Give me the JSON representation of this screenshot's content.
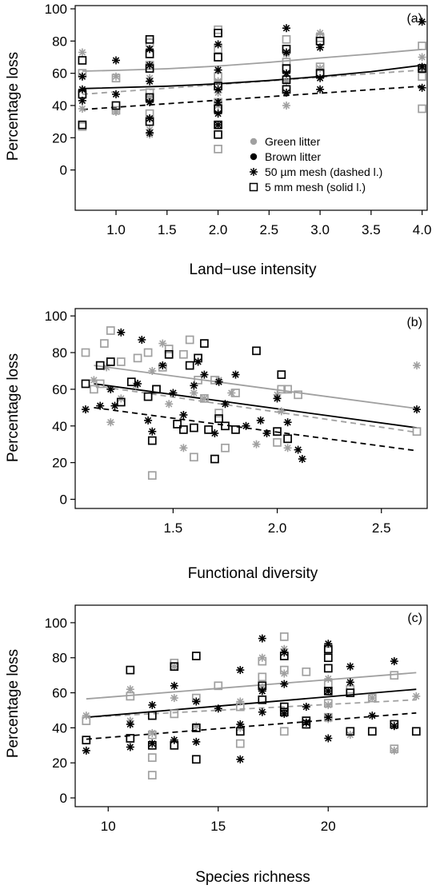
{
  "colors": {
    "green": "#a0a0a0",
    "brown": "#000000"
  },
  "chart_data": [
    {
      "type": "scatter",
      "panel_label": "(a)",
      "xlabel": "Land−use intensity",
      "ylabel": "Percentage loss",
      "xlim": [
        0.6,
        4.05
      ],
      "ylim": [
        -25,
        102
      ],
      "xticks": [
        1.0,
        1.5,
        2.0,
        2.5,
        3.0,
        3.5,
        4.0
      ],
      "xtick_labels": [
        "1.0",
        "1.5",
        "2.0",
        "2.5",
        "3.0",
        "3.5",
        "4.0"
      ],
      "yticks": [
        0,
        20,
        40,
        60,
        80,
        100
      ],
      "ytick_labels": [
        "0",
        "20",
        "40",
        "60",
        "80",
        "100"
      ],
      "legend": {
        "position": "center-right",
        "entries": [
          {
            "label": "Green litter",
            "marker": "dot",
            "color": "green"
          },
          {
            "label": "Brown litter",
            "marker": "dot",
            "color": "brown"
          },
          {
            "label": "50 µm mesh (dashed l.)",
            "marker": "star",
            "color": "brown"
          },
          {
            "label": "5 mm mesh (solid l.)",
            "marker": "square",
            "color": "brown"
          }
        ]
      },
      "points": [
        {
          "series": "green-50um",
          "marker": "star",
          "color": "green",
          "x": [
            0.67,
            0.67,
            0.67,
            1.0,
            1.0,
            1.33,
            1.33,
            1.33,
            1.33,
            1.33,
            2.0,
            2.0,
            2.0,
            2.0,
            2.0,
            2.67,
            2.67,
            2.67,
            3.0,
            3.0,
            4.0,
            4.0
          ],
          "y": [
            73,
            58,
            38,
            58,
            36,
            57,
            45,
            32,
            25,
            22,
            62,
            55,
            48,
            40,
            28,
            72,
            55,
            40,
            85,
            63,
            70,
            63
          ]
        },
        {
          "series": "green-5mm",
          "marker": "square",
          "color": "green",
          "x": [
            0.67,
            0.67,
            1.0,
            1.0,
            1.33,
            1.33,
            1.33,
            1.33,
            2.0,
            2.0,
            2.0,
            2.0,
            2.0,
            2.67,
            2.67,
            2.67,
            3.0,
            3.0,
            4.0,
            4.0,
            4.0
          ],
          "y": [
            60,
            27,
            57,
            37,
            79,
            65,
            48,
            35,
            87,
            75,
            58,
            42,
            13,
            81,
            67,
            50,
            82,
            64,
            77,
            58,
            38
          ]
        },
        {
          "series": "brown-50um",
          "marker": "star",
          "color": "brown",
          "x": [
            0.67,
            0.67,
            0.67,
            1.0,
            1.0,
            1.33,
            1.33,
            1.33,
            1.33,
            1.33,
            1.33,
            2.0,
            2.0,
            2.0,
            2.0,
            2.0,
            2.0,
            2.67,
            2.67,
            2.67,
            2.67,
            3.0,
            3.0,
            3.0,
            4.0,
            4.0,
            4.0
          ],
          "y": [
            58,
            50,
            43,
            68,
            47,
            75,
            65,
            55,
            42,
            32,
            23,
            78,
            62,
            50,
            42,
            35,
            28,
            88,
            73,
            60,
            48,
            76,
            57,
            50,
            92,
            64,
            51
          ]
        },
        {
          "series": "brown-5mm",
          "marker": "square",
          "color": "brown",
          "x": [
            0.67,
            0.67,
            0.67,
            1.0,
            1.33,
            1.33,
            1.33,
            1.33,
            1.33,
            2.0,
            2.0,
            2.0,
            2.0,
            2.0,
            2.0,
            2.67,
            2.67,
            2.67,
            2.67,
            3.0,
            3.0,
            4.0
          ],
          "y": [
            68,
            47,
            28,
            40,
            81,
            72,
            63,
            45,
            30,
            85,
            70,
            52,
            38,
            28,
            22,
            75,
            63,
            56,
            50,
            80,
            60,
            63
          ]
        }
      ],
      "lines": [
        {
          "series": "green-5mm",
          "color": "green",
          "style": "solid",
          "x": [
            0.67,
            1.0,
            1.5,
            2.0,
            2.5,
            3.0,
            3.5,
            4.0
          ],
          "y": [
            61.3,
            61.8,
            62.8,
            64.5,
            66.8,
            69.5,
            72.0,
            74.8
          ]
        },
        {
          "series": "green-50um",
          "color": "green",
          "style": "dashed",
          "x": [
            0.67,
            4.0
          ],
          "y": [
            47.0,
            62.0
          ]
        },
        {
          "series": "brown-5mm",
          "color": "brown",
          "style": "solid",
          "x": [
            0.67,
            1.5,
            2.0,
            2.5,
            3.0,
            3.5,
            4.0
          ],
          "y": [
            50.5,
            52.0,
            53.5,
            55.5,
            58.0,
            61.0,
            65.0
          ]
        },
        {
          "series": "brown-50um",
          "color": "brown",
          "style": "dashed",
          "x": [
            0.67,
            4.0
          ],
          "y": [
            37.5,
            52.0
          ]
        }
      ]
    },
    {
      "type": "scatter",
      "panel_label": "(b)",
      "xlabel": "Functional diversity",
      "ylabel": "Percentage loss",
      "xlim": [
        1.03,
        2.72
      ],
      "ylim": [
        -5,
        104
      ],
      "xticks": [
        1.5,
        2.0,
        2.5
      ],
      "xtick_labels": [
        "1.5",
        "2.0",
        "2.5"
      ],
      "yticks": [
        0,
        20,
        40,
        60,
        80,
        100
      ],
      "ytick_labels": [
        "0",
        "20",
        "40",
        "60",
        "80",
        "100"
      ],
      "points": [
        {
          "series": "green-50um",
          "marker": "star",
          "color": "green",
          "x": [
            1.12,
            1.18,
            1.2,
            1.25,
            1.32,
            1.4,
            1.45,
            1.48,
            1.55,
            1.6,
            1.65,
            1.72,
            1.78,
            1.9,
            2.0,
            2.02,
            2.05,
            2.67
          ],
          "y": [
            65,
            72,
            42,
            55,
            62,
            70,
            85,
            52,
            28,
            58,
            55,
            65,
            58,
            30,
            57,
            48,
            28,
            73
          ]
        },
        {
          "series": "green-5mm",
          "marker": "square",
          "color": "green",
          "x": [
            1.08,
            1.12,
            1.15,
            1.17,
            1.2,
            1.25,
            1.33,
            1.38,
            1.4,
            1.42,
            1.45,
            1.48,
            1.55,
            1.58,
            1.6,
            1.62,
            1.65,
            1.7,
            1.72,
            1.75,
            1.8,
            2.0,
            2.02,
            2.05,
            2.1,
            2.67
          ],
          "y": [
            80,
            60,
            63,
            85,
            92,
            75,
            77,
            80,
            13,
            60,
            72,
            82,
            79,
            87,
            23,
            65,
            55,
            65,
            47,
            28,
            58,
            31,
            60,
            60,
            57,
            37
          ]
        },
        {
          "series": "brown-50um",
          "marker": "star",
          "color": "brown",
          "x": [
            1.08,
            1.15,
            1.2,
            1.22,
            1.25,
            1.33,
            1.35,
            1.38,
            1.4,
            1.45,
            1.5,
            1.55,
            1.6,
            1.62,
            1.65,
            1.7,
            1.72,
            1.75,
            1.8,
            1.85,
            1.92,
            1.95,
            2.0,
            2.05,
            2.1,
            2.12,
            2.67
          ],
          "y": [
            49,
            51,
            60,
            51,
            91,
            63,
            87,
            43,
            37,
            73,
            58,
            46,
            62,
            75,
            68,
            36,
            64,
            52,
            68,
            40,
            43,
            36,
            55,
            42,
            27,
            22,
            49
          ]
        },
        {
          "series": "brown-5mm",
          "marker": "square",
          "color": "brown",
          "x": [
            1.08,
            1.15,
            1.2,
            1.25,
            1.3,
            1.38,
            1.4,
            1.42,
            1.48,
            1.52,
            1.55,
            1.58,
            1.6,
            1.62,
            1.65,
            1.67,
            1.7,
            1.72,
            1.75,
            1.8,
            1.9,
            2.0,
            2.02,
            2.05
          ],
          "y": [
            63,
            73,
            75,
            53,
            64,
            56,
            32,
            60,
            79,
            41,
            38,
            73,
            39,
            77,
            85,
            38,
            22,
            44,
            40,
            38,
            81,
            37,
            68,
            33
          ]
        }
      ],
      "lines": [
        {
          "series": "green-5mm",
          "color": "green",
          "style": "solid",
          "x": [
            1.12,
            2.67
          ],
          "y": [
            73.0,
            49.5
          ]
        },
        {
          "series": "green-50um",
          "color": "green",
          "style": "dashed",
          "x": [
            1.12,
            2.67
          ],
          "y": [
            62.0,
            36.5
          ]
        },
        {
          "series": "brown-5mm",
          "color": "brown",
          "style": "solid",
          "x": [
            1.12,
            2.67
          ],
          "y": [
            63.0,
            39.0
          ]
        },
        {
          "series": "brown-50um",
          "color": "brown",
          "style": "dashed",
          "x": [
            1.12,
            2.67
          ],
          "y": [
            50.0,
            26.5
          ]
        }
      ]
    },
    {
      "type": "scatter",
      "panel_label": "(c)",
      "xlabel": "Species richness",
      "ylabel": "Percentage loss",
      "xlim": [
        8.5,
        24.5
      ],
      "ylim": [
        -5,
        110
      ],
      "xticks": [
        10,
        15,
        20
      ],
      "xtick_labels": [
        "10",
        "15",
        "20"
      ],
      "yticks": [
        0,
        20,
        40,
        60,
        80,
        100
      ],
      "ytick_labels": [
        "0",
        "20",
        "40",
        "60",
        "80",
        "100"
      ],
      "points": [
        {
          "series": "green-50um",
          "marker": "star",
          "color": "green",
          "x": [
            9,
            11,
            11,
            12,
            13,
            13,
            14,
            16,
            16,
            17,
            17,
            18,
            18,
            18,
            19,
            20,
            20,
            20,
            21,
            22,
            23,
            24
          ],
          "y": [
            47,
            62,
            44,
            37,
            57,
            75,
            41,
            55,
            40,
            80,
            63,
            85,
            71,
            50,
            43,
            68,
            53,
            45,
            36,
            57,
            27,
            58
          ]
        },
        {
          "series": "green-5mm",
          "marker": "square",
          "color": "green",
          "x": [
            9,
            11,
            12,
            12,
            12,
            13,
            13,
            14,
            14,
            15,
            16,
            16,
            17,
            17,
            18,
            18,
            18,
            19,
            20,
            20,
            20,
            20,
            21,
            22,
            23,
            23
          ],
          "y": [
            44,
            58,
            36,
            23,
            13,
            77,
            48,
            57,
            40,
            64,
            52,
            31,
            78,
            69,
            92,
            73,
            38,
            72,
            84,
            65,
            54,
            46,
            62,
            57,
            70,
            28
          ]
        },
        {
          "series": "brown-50um",
          "marker": "star",
          "color": "brown",
          "x": [
            9,
            11,
            11,
            12,
            12,
            13,
            13,
            14,
            14,
            15,
            16,
            16,
            16,
            17,
            17,
            17,
            18,
            18,
            18,
            19,
            19,
            20,
            20,
            20,
            20,
            21,
            21,
            22,
            23,
            23
          ],
          "y": [
            27,
            29,
            42,
            53,
            31,
            64,
            33,
            55,
            32,
            51,
            73,
            42,
            22,
            91,
            61,
            49,
            83,
            65,
            48,
            52,
            43,
            88,
            61,
            46,
            34,
            75,
            66,
            47,
            78,
            41
          ]
        },
        {
          "series": "brown-5mm",
          "marker": "square",
          "color": "brown",
          "x": [
            9,
            11,
            11,
            12,
            12,
            13,
            13,
            14,
            14,
            14,
            16,
            17,
            17,
            18,
            18,
            18,
            19,
            19,
            20,
            20,
            20,
            20,
            21,
            21,
            22,
            23,
            24
          ],
          "y": [
            33,
            73,
            34,
            47,
            30,
            75,
            30,
            81,
            40,
            22,
            38,
            64,
            56,
            81,
            52,
            49,
            44,
            42,
            85,
            80,
            74,
            61,
            60,
            38,
            38,
            42,
            38
          ]
        }
      ],
      "lines": [
        {
          "series": "green-5mm",
          "color": "green",
          "style": "solid",
          "x": [
            9,
            24
          ],
          "y": [
            56.5,
            71.5
          ]
        },
        {
          "series": "green-50um",
          "color": "green",
          "style": "dashed",
          "x": [
            9,
            24
          ],
          "y": [
            46.0,
            56.0
          ]
        },
        {
          "series": "brown-5mm",
          "color": "brown",
          "style": "solid",
          "x": [
            9,
            24
          ],
          "y": [
            46.0,
            62.0
          ]
        },
        {
          "series": "brown-50um",
          "color": "brown",
          "style": "dashed",
          "x": [
            9,
            24
          ],
          "y": [
            33.5,
            48.5
          ]
        }
      ]
    }
  ]
}
